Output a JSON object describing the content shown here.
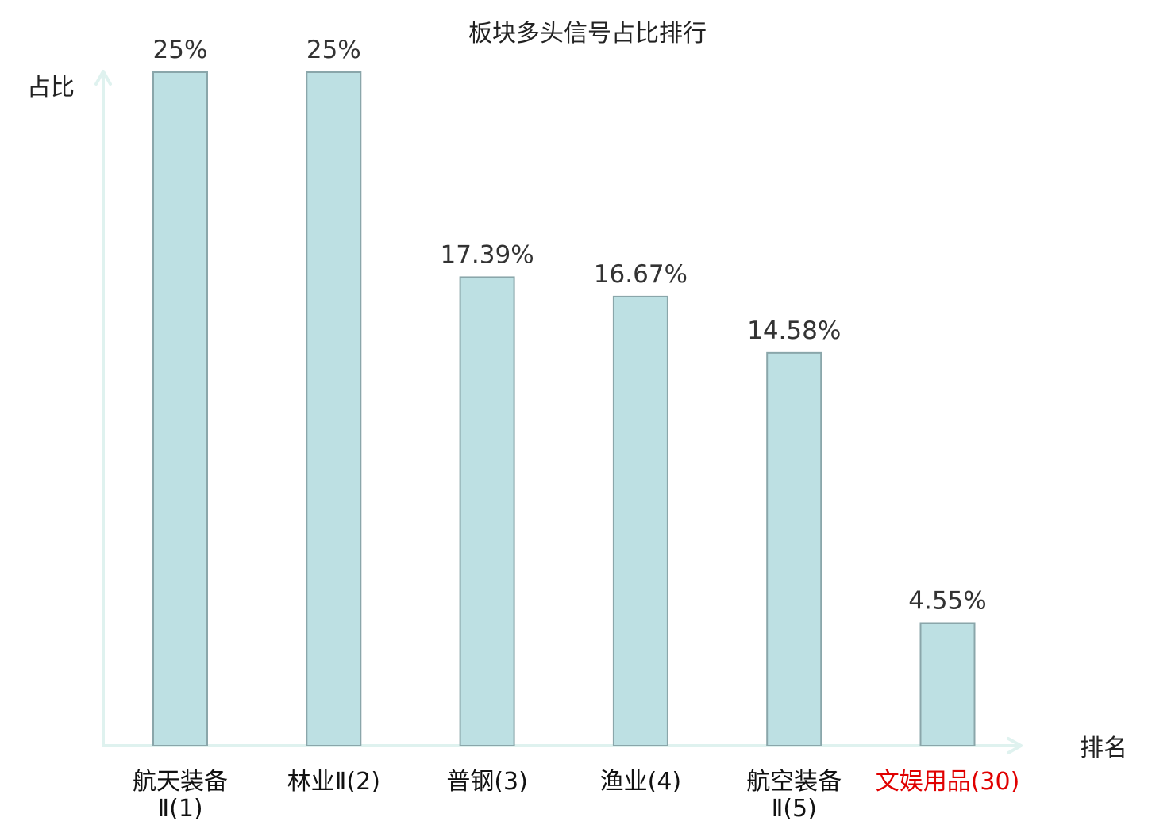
{
  "chart_data": {
    "type": "bar",
    "title": "板块多头信号占比排行",
    "ylabel": "占比",
    "xlabel": "排名",
    "ylim": [
      0,
      25
    ],
    "categories": [
      {
        "lines": [
          "航天装备",
          "Ⅱ(1)"
        ],
        "highlight": false
      },
      {
        "lines": [
          "林业Ⅱ(2)"
        ],
        "highlight": false
      },
      {
        "lines": [
          "普钢(3)"
        ],
        "highlight": false
      },
      {
        "lines": [
          "渔业(4)"
        ],
        "highlight": false
      },
      {
        "lines": [
          "航空装备",
          "Ⅱ(5)"
        ],
        "highlight": false
      },
      {
        "lines": [
          "文娱用品(30)"
        ],
        "highlight": true
      }
    ],
    "values": [
      25,
      25,
      17.39,
      16.67,
      14.58,
      4.55
    ],
    "value_labels": [
      "25%",
      "25%",
      "17.39%",
      "16.67%",
      "14.58%",
      "4.55%"
    ],
    "grid": false
  },
  "colors": {
    "bar_fill": "#bde0e3",
    "bar_stroke": "#8aa6aa",
    "axis": "#dff2ef",
    "highlight": "#e00000"
  }
}
